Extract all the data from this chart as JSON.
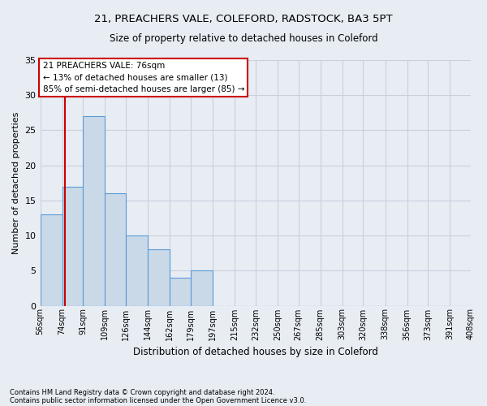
{
  "title1": "21, PREACHERS VALE, COLEFORD, RADSTOCK, BA3 5PT",
  "title2": "Size of property relative to detached houses in Coleford",
  "xlabel": "Distribution of detached houses by size in Coleford",
  "ylabel": "Number of detached properties",
  "bin_labels": [
    "56sqm",
    "74sqm",
    "91sqm",
    "109sqm",
    "126sqm",
    "144sqm",
    "162sqm",
    "179sqm",
    "197sqm",
    "215sqm",
    "232sqm",
    "250sqm",
    "267sqm",
    "285sqm",
    "303sqm",
    "320sqm",
    "338sqm",
    "356sqm",
    "373sqm",
    "391sqm",
    "408sqm"
  ],
  "bin_edges": [
    56,
    74,
    91,
    109,
    126,
    144,
    162,
    179,
    197,
    215,
    232,
    250,
    267,
    285,
    303,
    320,
    338,
    356,
    373,
    391,
    408
  ],
  "bar_heights": [
    13,
    17,
    27,
    16,
    10,
    8,
    4,
    5,
    0,
    0,
    0,
    0,
    0,
    0,
    0,
    0,
    0,
    0,
    0,
    0
  ],
  "bar_color": "#c9d9e8",
  "bar_edgecolor": "#5b9bd5",
  "grid_color": "#c8d0dc",
  "background_color": "#e8edf4",
  "vline_x": 76,
  "vline_color": "#cc0000",
  "annotation_text": "21 PREACHERS VALE: 76sqm\n← 13% of detached houses are smaller (13)\n85% of semi-detached houses are larger (85) →",
  "annotation_box_color": "#ffffff",
  "annotation_box_edgecolor": "#cc0000",
  "ylim": [
    0,
    35
  ],
  "yticks": [
    0,
    5,
    10,
    15,
    20,
    25,
    30,
    35
  ],
  "footnote1": "Contains HM Land Registry data © Crown copyright and database right 2024.",
  "footnote2": "Contains public sector information licensed under the Open Government Licence v3.0."
}
